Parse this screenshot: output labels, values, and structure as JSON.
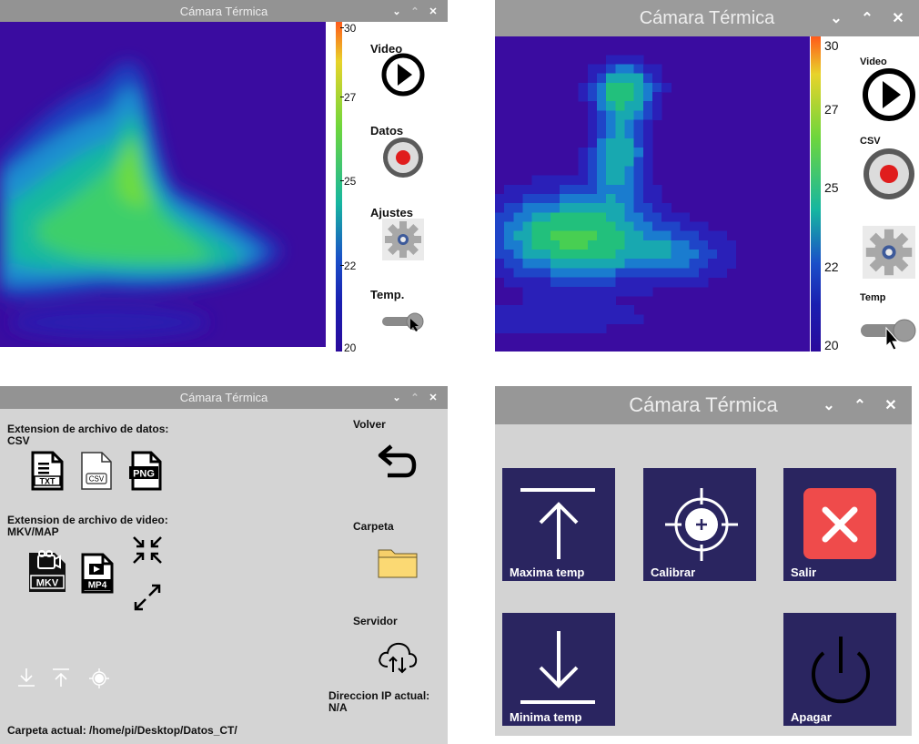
{
  "colors": {
    "heat_background": "#3a0ca0",
    "titlebar": "#939393",
    "window_bg": "#d3d3d3",
    "tile": "#2a2560",
    "exit_red": "#ef4b4b"
  },
  "windows": {
    "main_small": {
      "title": "Cámara Térmica",
      "controls": [
        "⌄",
        "⌃",
        "✕"
      ],
      "colorbar_ticks": [
        "30",
        "27",
        "25",
        "22",
        "20"
      ],
      "sidebar": {
        "video_label": "Video",
        "data_label": "Datos",
        "settings_label": "Ajustes",
        "temp_label": "Temp."
      }
    },
    "main_large": {
      "title": "Cámara Térmica",
      "controls": [
        "⌄",
        "⌃",
        "✕"
      ],
      "colorbar_ticks": [
        "30",
        "27",
        "25",
        "22",
        "20"
      ],
      "sidebar": {
        "video_label": "Video",
        "data_label": "CSV",
        "temp_label": "Temp"
      }
    },
    "settings": {
      "title": "Cámara Térmica",
      "controls": [
        "⌄",
        "⌃",
        "✕"
      ],
      "data_ext_label": "Extension de archivo de datos:",
      "data_ext_value": "CSV",
      "data_formats": [
        "TXT",
        "CSV",
        "PNG"
      ],
      "video_ext_label": "Extension de archivo de video:",
      "video_ext_value": "MKV/MAP",
      "video_formats": [
        "MKV",
        "MP4"
      ],
      "back_label": "Volver",
      "folder_label": "Carpeta",
      "server_label": "Servidor",
      "ip_label": "Direccion IP actual:",
      "ip_value": "N/A",
      "current_folder": "Carpeta actual: /home/pi/Desktop/Datos_CT/"
    },
    "menu": {
      "title": "Cámara Térmica",
      "controls": [
        "⌄",
        "⌃",
        "✕"
      ],
      "tiles": {
        "max_temp": "Maxima temp",
        "calibrate": "Calibrar",
        "exit": "Salir",
        "min_temp": "Minima temp",
        "shutdown": "Apagar"
      }
    }
  }
}
